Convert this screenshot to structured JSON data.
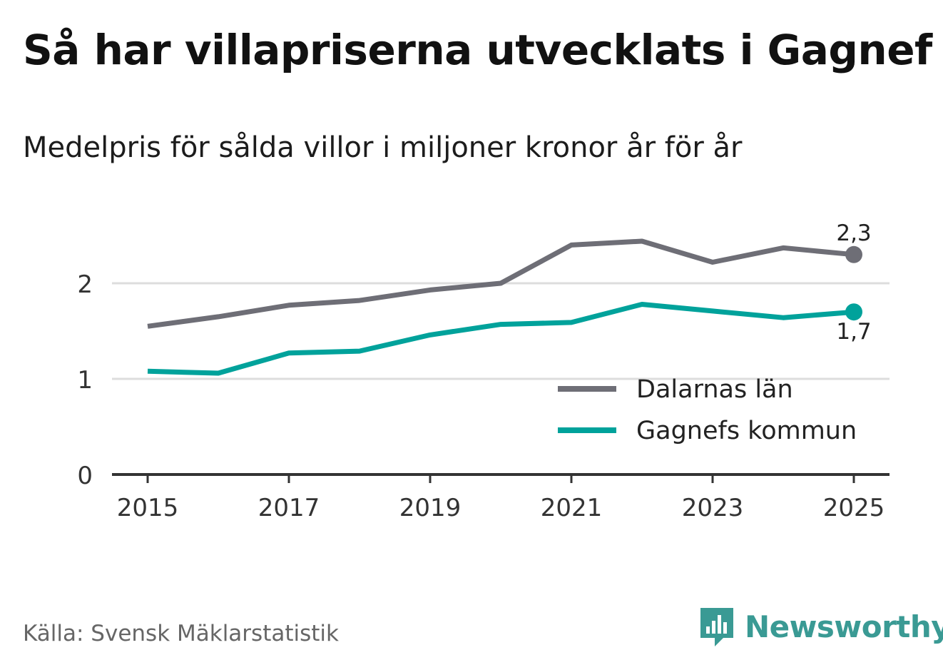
{
  "title": "Så har villapriserna utvecklats i Gagnef",
  "subtitle": "Medelpris för sålda villor i miljoner kronor år för år",
  "source": "Källa: Svensk Mäklarstatistik",
  "brand": "Newsworthy",
  "colors": {
    "dalarna": "#6e6e76",
    "gagnef": "#00a29b",
    "grid": "#dddddd",
    "axis": "#333333",
    "brand": "#3a9a94"
  },
  "chart_data": {
    "type": "line",
    "x": [
      2015,
      2016,
      2017,
      2018,
      2019,
      2020,
      2021,
      2022,
      2023,
      2024,
      2025
    ],
    "x_ticks": [
      "2015",
      "2017",
      "2019",
      "2021",
      "2023",
      "2025"
    ],
    "y_ticks": [
      "0",
      "1",
      "2"
    ],
    "ylim": [
      0,
      2.6
    ],
    "series": [
      {
        "name": "Dalarnas län",
        "color": "#6e6e76",
        "values": [
          1.55,
          1.65,
          1.77,
          1.82,
          1.93,
          2.0,
          2.4,
          2.44,
          2.22,
          2.37,
          2.3
        ],
        "end_label": "2,3"
      },
      {
        "name": "Gagnefs kommun",
        "color": "#00a29b",
        "values": [
          1.08,
          1.06,
          1.27,
          1.29,
          1.46,
          1.57,
          1.59,
          1.78,
          1.71,
          1.64,
          1.7
        ],
        "end_label": "1,7"
      }
    ],
    "legend_position": "lower-right",
    "grid": true
  }
}
